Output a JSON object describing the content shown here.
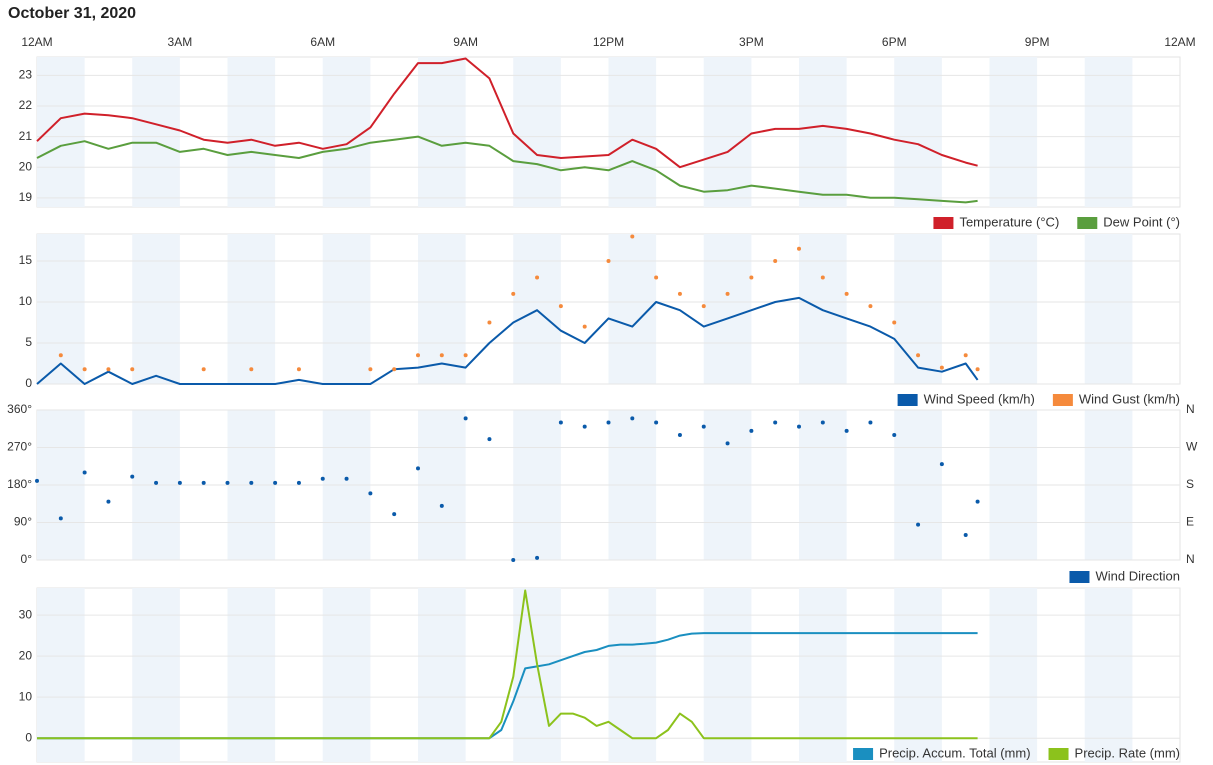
{
  "title": "October 31, 2020",
  "chart_data": [
    {
      "type": "line",
      "x": [
        0,
        0.5,
        1,
        1.5,
        2,
        2.5,
        3,
        3.5,
        4,
        4.5,
        5,
        5.5,
        6,
        6.5,
        7,
        7.5,
        8,
        8.5,
        9,
        9.5,
        10,
        10.5,
        11,
        11.5,
        12,
        12.5,
        13,
        13.5,
        14,
        14.5,
        15,
        15.5,
        16,
        16.5,
        17,
        17.5,
        18,
        18.5,
        19,
        19.5,
        19.75
      ],
      "xlim": [
        0,
        24
      ],
      "xticks": [
        {
          "value": 0,
          "label": "12AM"
        },
        {
          "value": 3,
          "label": "3AM"
        },
        {
          "value": 6,
          "label": "6AM"
        },
        {
          "value": 9,
          "label": "9AM"
        },
        {
          "value": 12,
          "label": "12PM"
        },
        {
          "value": 15,
          "label": "3PM"
        },
        {
          "value": 18,
          "label": "6PM"
        },
        {
          "value": 21,
          "label": "9PM"
        },
        {
          "value": 24,
          "label": "12AM"
        }
      ],
      "ylim": [
        18.7,
        23.6
      ],
      "yticks": [
        19,
        20,
        21,
        22,
        23
      ],
      "grid": true,
      "series": [
        {
          "name": "Temperature (°C)",
          "color": "#d0202a",
          "mode": "lines",
          "values": [
            20.85,
            21.6,
            21.75,
            21.7,
            21.6,
            21.4,
            21.2,
            20.9,
            20.8,
            20.9,
            20.7,
            20.8,
            20.6,
            20.75,
            21.3,
            22.4,
            23.4,
            23.4,
            23.55,
            22.9,
            21.1,
            20.4,
            20.3,
            20.35,
            20.4,
            20.9,
            20.6,
            20.0,
            20.25,
            20.5,
            21.1,
            21.25,
            21.25,
            21.35,
            21.25,
            21.1,
            20.9,
            20.75,
            20.4,
            20.15,
            20.05
          ]
        },
        {
          "name": "Dew Point (°)",
          "color": "#5a9e3e",
          "mode": "lines",
          "values": [
            20.3,
            20.7,
            20.85,
            20.6,
            20.8,
            20.8,
            20.5,
            20.6,
            20.4,
            20.5,
            20.4,
            20.3,
            20.5,
            20.6,
            20.8,
            20.9,
            21.0,
            20.7,
            20.8,
            20.7,
            20.2,
            20.1,
            19.9,
            20.0,
            19.9,
            20.2,
            19.9,
            19.4,
            19.2,
            19.25,
            19.4,
            19.3,
            19.2,
            19.1,
            19.1,
            19.0,
            19.0,
            18.95,
            18.9,
            18.85,
            18.9
          ]
        }
      ]
    },
    {
      "type": "line",
      "x": [
        0,
        0.5,
        1,
        1.5,
        2,
        2.5,
        3,
        3.5,
        4,
        4.5,
        5,
        5.5,
        6,
        6.5,
        7,
        7.5,
        8,
        8.5,
        9,
        9.5,
        10,
        10.5,
        11,
        11.5,
        12,
        12.5,
        13,
        13.5,
        14,
        14.5,
        15,
        15.5,
        16,
        16.5,
        17,
        17.5,
        18,
        18.5,
        19,
        19.5,
        19.75
      ],
      "xlim": [
        0,
        24
      ],
      "ylim": [
        0,
        18.3
      ],
      "yticks": [
        0,
        5,
        10,
        15
      ],
      "grid": true,
      "series": [
        {
          "name": "Wind Speed (km/h)",
          "color": "#0a5aaa",
          "mode": "lines",
          "values": [
            0,
            2.5,
            0,
            1.5,
            0,
            1,
            0,
            0,
            0,
            0,
            0,
            0.5,
            0,
            0,
            0,
            1.8,
            2,
            2.5,
            2,
            5,
            7.5,
            9,
            6.5,
            5,
            8,
            7,
            10,
            9,
            7,
            8,
            9,
            10,
            10.5,
            9,
            8,
            7,
            5.5,
            2,
            1.5,
            2.5,
            0.5
          ]
        },
        {
          "name": "Wind Gust (km/h)",
          "color": "#f58a3c",
          "mode": "markers",
          "values": [
            null,
            3.5,
            1.8,
            1.8,
            1.8,
            null,
            null,
            1.8,
            null,
            1.8,
            null,
            1.8,
            null,
            null,
            1.8,
            1.8,
            3.5,
            3.5,
            3.5,
            7.5,
            11,
            13,
            9.5,
            7,
            15,
            18,
            13,
            11,
            9.5,
            11,
            13,
            15,
            16.5,
            13,
            11,
            9.5,
            7.5,
            3.5,
            2,
            3.5,
            1.8
          ]
        }
      ]
    },
    {
      "type": "scatter",
      "x": [
        0,
        0.5,
        1,
        1.5,
        2,
        2.5,
        3,
        3.5,
        4,
        4.5,
        5,
        5.5,
        6,
        6.5,
        7,
        7.5,
        8,
        8.5,
        9,
        9.5,
        10,
        10.5,
        11,
        11.5,
        12,
        12.5,
        13,
        13.5,
        14,
        14.5,
        15,
        15.5,
        16,
        16.5,
        17,
        17.5,
        18,
        18.5,
        19,
        19.5,
        19.75
      ],
      "xlim": [
        0,
        24
      ],
      "ylim": [
        0,
        360
      ],
      "yticks": [
        {
          "value": 0,
          "label": "0°"
        },
        {
          "value": 90,
          "label": "90°"
        },
        {
          "value": 180,
          "label": "180°"
        },
        {
          "value": 270,
          "label": "270°"
        },
        {
          "value": 360,
          "label": "360°"
        }
      ],
      "y2lim": [
        0,
        360
      ],
      "y2ticks": [
        {
          "value": 0,
          "label": "N"
        },
        {
          "value": 90,
          "label": "E"
        },
        {
          "value": 180,
          "label": "S"
        },
        {
          "value": 270,
          "label": "W"
        },
        {
          "value": 360,
          "label": "N"
        }
      ],
      "grid": true,
      "series": [
        {
          "name": "Wind Direction",
          "color": "#0a5aaa",
          "mode": "markers",
          "values": [
            190,
            100,
            210,
            140,
            200,
            185,
            185,
            185,
            185,
            185,
            185,
            185,
            195,
            195,
            160,
            110,
            220,
            130,
            340,
            290,
            0,
            5,
            330,
            320,
            330,
            340,
            330,
            300,
            320,
            280,
            310,
            330,
            320,
            330,
            310,
            330,
            300,
            85,
            230,
            60,
            140
          ]
        }
      ]
    },
    {
      "type": "line",
      "x": [
        0,
        9.5,
        9.75,
        10,
        10.25,
        10.5,
        10.75,
        11,
        11.25,
        11.5,
        11.75,
        12,
        12.25,
        12.5,
        12.75,
        13,
        13.25,
        13.5,
        13.75,
        14,
        14.25,
        14.5,
        15,
        19.75
      ],
      "xlim": [
        0,
        24
      ],
      "ylim": [
        -5.8,
        36.6
      ],
      "yticks": [
        0,
        10,
        20,
        30
      ],
      "grid": true,
      "series": [
        {
          "name": "Precip. Accum. Total (mm)",
          "color": "#1a8fc0",
          "mode": "lines",
          "values": [
            0,
            0,
            2,
            9,
            17,
            17.5,
            18,
            19,
            20,
            21,
            21.5,
            22.5,
            22.8,
            22.8,
            23,
            23.3,
            24,
            25,
            25.5,
            25.6,
            25.6,
            25.6,
            25.6,
            25.6
          ]
        },
        {
          "name": "Precip. Rate (mm)",
          "color": "#8cc21c",
          "mode": "lines",
          "values": [
            0,
            0,
            4,
            15,
            36,
            18,
            3,
            6,
            6,
            5,
            3,
            4,
            2,
            0,
            0,
            0,
            2,
            6,
            4,
            0,
            0,
            0,
            0,
            0
          ]
        }
      ]
    }
  ]
}
